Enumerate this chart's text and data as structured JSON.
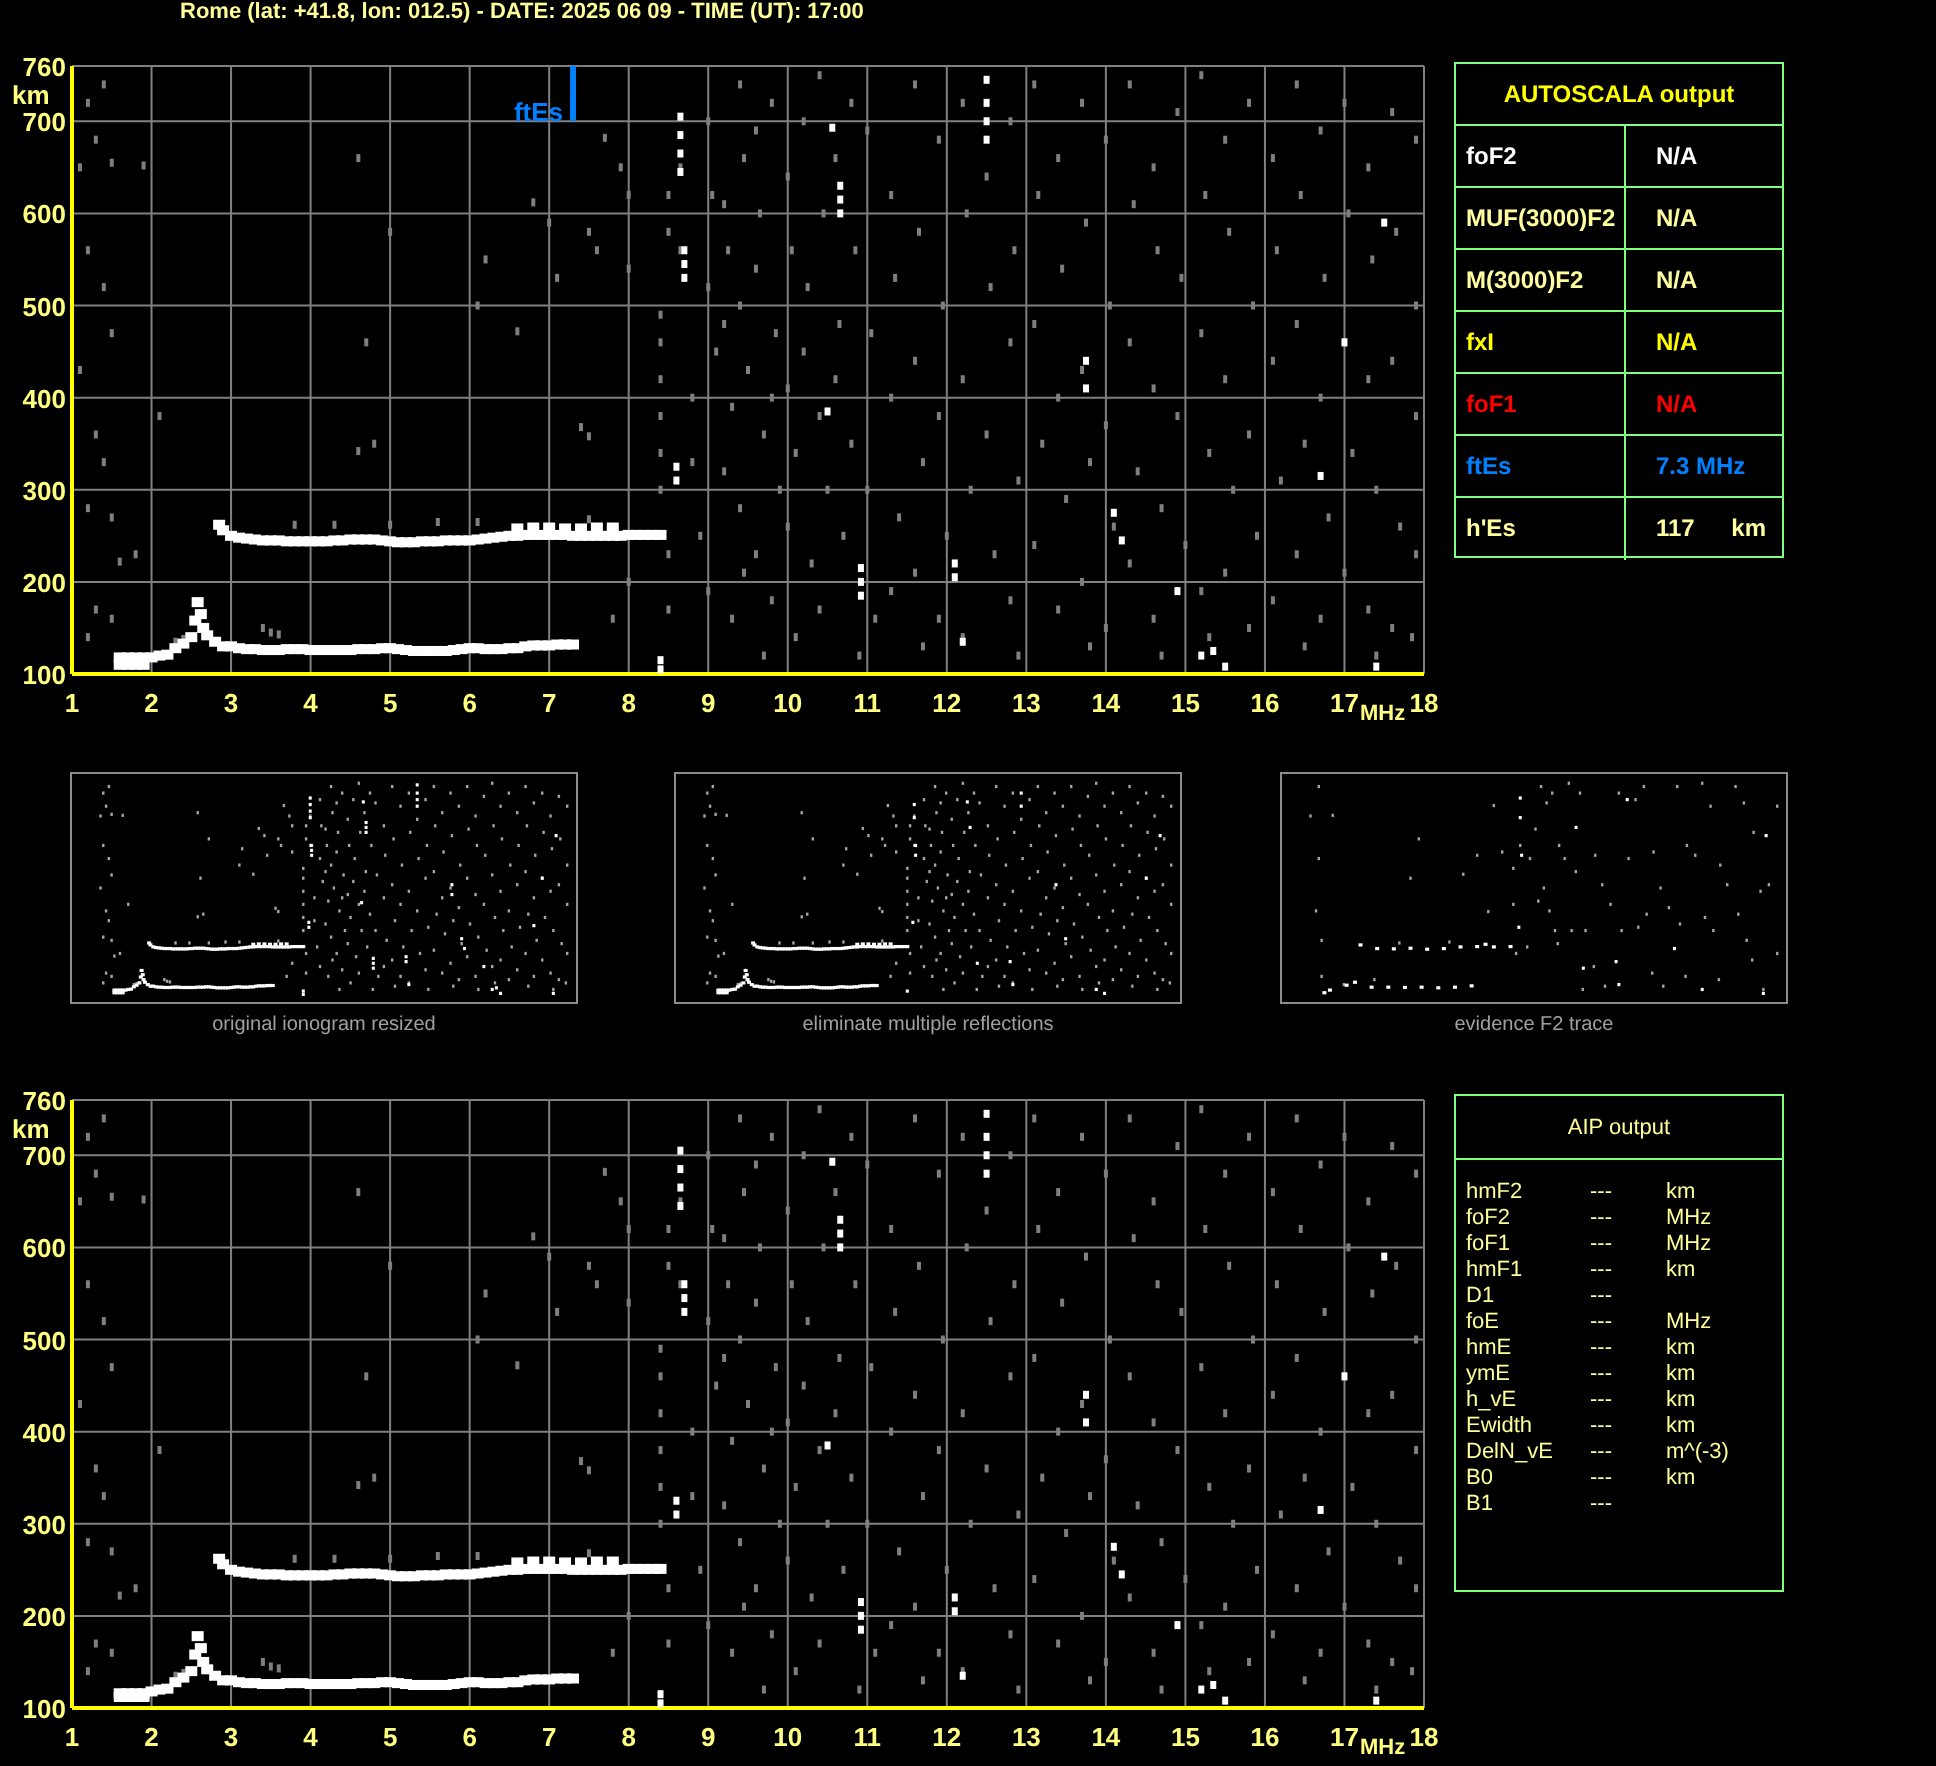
{
  "chart_data": [
    {
      "type": "scatter",
      "title": "Rome (lat: +41.8, lon: 012.5) - DATE: 2025 06 09 - TIME (UT): 17:00",
      "xlabel": "MHz",
      "ylabel": "km",
      "xlim": [
        1,
        18
      ],
      "ylim": [
        100,
        760
      ],
      "xticks": [
        1,
        2,
        3,
        4,
        5,
        6,
        7,
        8,
        9,
        10,
        11,
        12,
        13,
        14,
        15,
        16,
        17,
        18
      ],
      "yticks": [
        100,
        200,
        300,
        400,
        500,
        600,
        700,
        760
      ],
      "grid": true,
      "marker": "square",
      "ref_lines": [
        {
          "axis": "x",
          "value": 7.3,
          "label": "ftEs",
          "color": "#0080ff"
        }
      ],
      "series": [
        {
          "color": "#7f7f7f",
          "x": [
            1.1,
            1.2,
            1.3,
            1.4,
            1.5,
            1.2,
            1.4,
            1.5,
            1.1,
            1.3,
            1.4,
            1.2,
            1.5,
            1.6,
            1.3,
            1.5,
            1.2,
            1.8,
            1.9,
            2.1,
            4.6,
            4.7,
            4.8,
            4.6,
            3.4,
            3.5,
            3.6,
            5.0,
            6.2,
            6.1,
            6.6,
            6.8,
            7.0,
            7.1,
            7.5,
            7.6,
            7.7,
            7.9,
            7.4,
            7.5,
            7.8,
            8.0,
            8.0,
            8.0,
            3.8,
            4.3,
            5.0,
            5.6,
            6.1,
            7.5,
            2.4,
            2.3,
            8.4,
            8.4,
            8.4,
            8.4,
            8.4,
            8.4,
            8.5,
            8.5,
            8.5,
            8.5,
            8.65,
            8.65,
            8.8,
            8.8,
            8.9,
            9,
            9.05,
            9,
            9.1,
            9,
            9.2,
            9.25,
            9.2,
            9.3,
            9.2,
            9.3,
            9.4,
            9.45,
            9.4,
            9.5,
            9.4,
            9.45,
            9.6,
            9.65,
            9.6,
            9.7,
            9.6,
            9.7,
            9.8,
            9.85,
            9.8,
            9.9,
            9.8,
            10,
            10.05,
            10,
            10.1,
            10,
            10.1,
            10.2,
            10.25,
            10.2,
            10.3,
            10.4,
            10.45,
            10.4,
            10.5,
            10.4,
            10.6,
            10.65,
            10.6,
            10.7,
            10.8,
            10.85,
            10.8,
            10.9,
            11,
            11.05,
            11,
            11.1,
            11.3,
            11.35,
            11.3,
            11.4,
            11.3,
            11.6,
            11.65,
            11.6,
            11.7,
            11.6,
            11.7,
            11.9,
            11.95,
            11.9,
            12,
            11.9,
            12.2,
            12.25,
            12.2,
            12.3,
            12.2,
            12.5,
            12.55,
            12.5,
            12.6,
            12.8,
            12.85,
            12.8,
            12.9,
            12.8,
            12.9,
            13.1,
            13.15,
            13.1,
            13.2,
            13.1,
            13.4,
            13.45,
            13.4,
            13.5,
            13.4,
            13.7,
            13.75,
            13.7,
            13.8,
            13.7,
            13.8,
            14,
            14.05,
            14,
            14.1,
            14,
            14.3,
            14.35,
            14.3,
            14.4,
            14.3,
            14.6,
            14.65,
            14.6,
            14.7,
            14.6,
            14.7,
            14.9,
            14.95,
            14.9,
            15,
            15.2,
            15.25,
            15.2,
            15.3,
            15.2,
            15.3,
            15.5,
            15.55,
            15.5,
            15.6,
            15.5,
            15.8,
            15.85,
            15.8,
            15.9,
            15.8,
            16.1,
            16.15,
            16.1,
            16.2,
            16.1,
            16.4,
            16.45,
            16.4,
            16.5,
            16.4,
            16.5,
            16.7,
            16.75,
            16.7,
            16.8,
            16.7,
            17,
            17.05,
            17,
            17.1,
            17,
            17.3,
            17.35,
            17.3,
            17.4,
            17.3,
            17.4,
            17.6,
            17.65,
            17.6,
            17.7,
            17.6,
            17.9,
            17.9,
            17.9,
            17.9,
            17.85
          ],
          "values": [
            650,
            720,
            680,
            740,
            655,
            560,
            520,
            470,
            430,
            360,
            330,
            280,
            270,
            222,
            170,
            160,
            140,
            230,
            652,
            380,
            660,
            460,
            350,
            342,
            150,
            145,
            143,
            580,
            550,
            500,
            472,
            612,
            590,
            530,
            580,
            560,
            682,
            650,
            368,
            358,
            160,
            200,
            540,
            620,
            262,
            262,
            262,
            265,
            265,
            268,
            138,
            135,
            300,
            340,
            380,
            420,
            460,
            490,
            620,
            580,
            230,
            170,
            650,
            560,
            400,
            330,
            250,
            700,
            620,
            520,
            450,
            190,
            610,
            560,
            480,
            390,
            320,
            160,
            740,
            660,
            500,
            430,
            280,
            210,
            690,
            600,
            540,
            360,
            230,
            120,
            720,
            470,
            400,
            300,
            180,
            640,
            560,
            410,
            340,
            260,
            140,
            700,
            520,
            450,
            220,
            750,
            600,
            380,
            300,
            170,
            660,
            480,
            420,
            250,
            720,
            560,
            350,
            120,
            690,
            470,
            300,
            160,
            620,
            530,
            400,
            270,
            190,
            740,
            580,
            440,
            330,
            210,
            130,
            680,
            500,
            380,
            250,
            160,
            720,
            600,
            420,
            300,
            140,
            640,
            520,
            360,
            230,
            700,
            560,
            460,
            310,
            180,
            120,
            740,
            620,
            480,
            350,
            240,
            660,
            540,
            400,
            290,
            170,
            720,
            590,
            430,
            330,
            200,
            130,
            680,
            500,
            370,
            260,
            150,
            740,
            610,
            460,
            320,
            220,
            650,
            560,
            410,
            280,
            160,
            120,
            710,
            530,
            380,
            240,
            750,
            620,
            470,
            340,
            190,
            140,
            680,
            580,
            420,
            300,
            210,
            720,
            500,
            360,
            250,
            150,
            660,
            560,
            440,
            310,
            180,
            740,
            620,
            480,
            350,
            230,
            130,
            690,
            530,
            400,
            270,
            160,
            720,
            600,
            460,
            340,
            210,
            650,
            550,
            420,
            300,
            170,
            120,
            710,
            580,
            440,
            260,
            150,
            680,
            500,
            380,
            230,
            140
          ]
        },
        {
          "color": "#ffffff",
          "x": [
            1.6,
            1.7,
            1.8,
            1.9,
            1.6,
            1.7,
            1.8,
            1.9,
            2,
            2.1,
            2.2,
            2.3,
            2.4,
            2.5,
            2.55,
            2.58,
            2.62,
            2.65,
            2.7,
            2.8,
            2.9,
            3,
            3.1,
            3.2,
            3.3,
            3.4,
            3.5,
            3.6,
            3.7,
            3.8,
            3.9,
            4,
            4.1,
            4.2,
            4.3,
            4.4,
            4.5,
            4.6,
            4.7,
            4.8,
            4.9,
            5,
            5.1,
            5.2,
            5.3,
            5.4,
            5.5,
            5.6,
            5.7,
            5.8,
            5.9,
            6,
            6.1,
            6.2,
            6.3,
            6.4,
            6.5,
            6.6,
            6.7,
            6.8,
            6.9,
            7,
            7.1,
            7.2,
            7.3,
            2.85,
            2.9,
            3,
            3.1,
            3.2,
            3.3,
            3.4,
            3.5,
            3.6,
            3.7,
            3.8,
            3.9,
            4,
            4.1,
            4.2,
            4.3,
            4.4,
            4.5,
            4.6,
            4.7,
            4.8,
            4.9,
            5,
            5.1,
            5.2,
            5.3,
            5.4,
            5.5,
            5.6,
            5.7,
            5.8,
            5.9,
            6,
            6.1,
            6.2,
            6.3,
            6.4,
            6.5,
            6.6,
            6.7,
            6.8,
            6.9,
            7,
            7.1,
            7.2,
            7.3,
            7.4,
            7.5,
            7.6,
            7.7,
            7.8,
            7.9,
            8,
            8.1,
            8.2,
            8.3,
            8.4,
            6.6,
            6.8,
            7,
            7.2,
            7.4,
            7.6,
            7.8
          ],
          "values": [
            110,
            110,
            110,
            110,
            118,
            118,
            118,
            118,
            118,
            120,
            121,
            128,
            133,
            140,
            158,
            178,
            165,
            150,
            142,
            135,
            130,
            130,
            128,
            127,
            127,
            126,
            126,
            126,
            127,
            127,
            127,
            126,
            126,
            126,
            126,
            126,
            126,
            127,
            127,
            127,
            128,
            128,
            127,
            126,
            125,
            125,
            125,
            125,
            125,
            126,
            127,
            128,
            128,
            127,
            127,
            127,
            128,
            128,
            130,
            131,
            131,
            131,
            132,
            132,
            132,
            262,
            256,
            250,
            248,
            247,
            246,
            245,
            245,
            245,
            244,
            244,
            244,
            244,
            244,
            244,
            245,
            245,
            246,
            246,
            246,
            246,
            245,
            244,
            243,
            243,
            243,
            244,
            244,
            244,
            245,
            245,
            245,
            245,
            246,
            247,
            248,
            249,
            250,
            250,
            251,
            251,
            251,
            251,
            251,
            251,
            250,
            250,
            250,
            250,
            250,
            250,
            250,
            251,
            251,
            251,
            251,
            251,
            258,
            259,
            259,
            258,
            258,
            259,
            259
          ]
        },
        {
          "color": "#ffffff",
          "x": [
            8.65,
            8.65,
            8.65,
            8.65,
            8.7,
            8.7,
            8.7,
            8.4,
            8.4,
            8.6,
            8.6,
            10.66,
            10.66,
            10.66,
            10.56,
            10.92,
            10.92,
            10.92,
            12.1,
            12.1,
            12.5,
            12.5,
            12.5,
            12.5,
            12.2,
            13.75,
            13.75,
            14.2,
            14.1,
            14.9,
            15.2,
            15.35,
            15.5,
            17.4,
            17.0,
            16.7,
            17.5,
            10.5
          ],
          "values": [
            645,
            665,
            685,
            705,
            560,
            545,
            530,
            105,
            115,
            310,
            325,
            600,
            615,
            630,
            693,
            185,
            200,
            215,
            205,
            220,
            680,
            700,
            720,
            745,
            135,
            410,
            440,
            245,
            275,
            190,
            120,
            125,
            108,
            108,
            460,
            315,
            590,
            385
          ]
        }
      ]
    },
    {
      "type": "other",
      "title": "AUTOSCALA output",
      "y_categories": [
        "foF2",
        "MUF(3000)F2",
        "M(3000)F2",
        "fxI",
        "foF1",
        "ftEs",
        "h'Es"
      ],
      "cell_labels": [
        [
          "N/A",
          null
        ],
        [
          "N/A",
          null
        ],
        [
          "N/A",
          null
        ],
        [
          "N/A",
          null
        ],
        [
          "N/A",
          null
        ],
        [
          "7.3 MHz",
          null
        ],
        [
          "117",
          "km"
        ]
      ],
      "colors": [
        "#ffffff",
        "#ffffa0",
        "#ffffa0",
        "#ffff00",
        "#ff0000",
        "#0080ff",
        "#ffffa0"
      ]
    },
    {
      "type": "other",
      "title": "original ionogram resized"
    },
    {
      "type": "other",
      "title": "eliminate multiple reflections"
    },
    {
      "type": "other",
      "title": "evidence F2 trace"
    },
    {
      "type": "scatter",
      "xlabel": "MHz",
      "ylabel": "km",
      "xlim": [
        1,
        18
      ],
      "ylim": [
        100,
        760
      ],
      "xticks": [
        1,
        2,
        3,
        4,
        5,
        6,
        7,
        8,
        9,
        10,
        11,
        12,
        13,
        14,
        15,
        16,
        17,
        18
      ],
      "yticks": [
        100,
        200,
        300,
        400,
        500,
        600,
        700,
        760
      ],
      "grid": true,
      "marker": "square",
      "series": [
        {
          "color": "#7f7f7f",
          "x": [
            1.1,
            1.2,
            1.3,
            1.4,
            1.5,
            1.2,
            1.4,
            1.5,
            1.1,
            1.3,
            1.4,
            1.2,
            1.5,
            1.6,
            1.3,
            1.5,
            1.2,
            1.8,
            1.9,
            2.1,
            4.6,
            4.7,
            4.8,
            4.6,
            3.4,
            3.5,
            3.6,
            5.0,
            6.2,
            6.1,
            6.6,
            6.8,
            7.0,
            7.1,
            7.5,
            7.6,
            7.7,
            7.9,
            7.4,
            7.5,
            7.8,
            8.0,
            8.0,
            8.0,
            3.8,
            4.3,
            5.0,
            5.6,
            6.1,
            7.5,
            2.4,
            2.3,
            8.4,
            8.4,
            8.4,
            8.4,
            8.4,
            8.4,
            8.5,
            8.5,
            8.5,
            8.5,
            8.65,
            8.65,
            8.8,
            8.8,
            8.9,
            9,
            9.05,
            9,
            9.1,
            9,
            9.2,
            9.25,
            9.2,
            9.3,
            9.2,
            9.3,
            9.4,
            9.45,
            9.4,
            9.5,
            9.4,
            9.45,
            9.6,
            9.65,
            9.6,
            9.7,
            9.6,
            9.7,
            9.8,
            9.85,
            9.8,
            9.9,
            9.8,
            10,
            10.05,
            10,
            10.1,
            10,
            10.1,
            10.2,
            10.25,
            10.2,
            10.3,
            10.4,
            10.45,
            10.4,
            10.5,
            10.4,
            10.6,
            10.65,
            10.6,
            10.7,
            10.8,
            10.85,
            10.8,
            10.9,
            11,
            11.05,
            11,
            11.1,
            11.3,
            11.35,
            11.3,
            11.4,
            11.3,
            11.6,
            11.65,
            11.6,
            11.7,
            11.6,
            11.7,
            11.9,
            11.95,
            11.9,
            12,
            11.9,
            12.2,
            12.25,
            12.2,
            12.3,
            12.2,
            12.5,
            12.55,
            12.5,
            12.6,
            12.8,
            12.85,
            12.8,
            12.9,
            12.8,
            12.9,
            13.1,
            13.15,
            13.1,
            13.2,
            13.1,
            13.4,
            13.45,
            13.4,
            13.5,
            13.4,
            13.7,
            13.75,
            13.7,
            13.8,
            13.7,
            13.8,
            14,
            14.05,
            14,
            14.1,
            14,
            14.3,
            14.35,
            14.3,
            14.4,
            14.3,
            14.6,
            14.65,
            14.6,
            14.7,
            14.6,
            14.7,
            14.9,
            14.95,
            14.9,
            15,
            15.2,
            15.25,
            15.2,
            15.3,
            15.2,
            15.3,
            15.5,
            15.55,
            15.5,
            15.6,
            15.5,
            15.8,
            15.85,
            15.8,
            15.9,
            15.8,
            16.1,
            16.15,
            16.1,
            16.2,
            16.1,
            16.4,
            16.45,
            16.4,
            16.5,
            16.4,
            16.5,
            16.7,
            16.75,
            16.7,
            16.8,
            16.7,
            17,
            17.05,
            17,
            17.1,
            17,
            17.3,
            17.35,
            17.3,
            17.4,
            17.3,
            17.4,
            17.6,
            17.65,
            17.6,
            17.7,
            17.6,
            17.9,
            17.9,
            17.9,
            17.9,
            17.85
          ],
          "values": [
            650,
            720,
            680,
            740,
            655,
            560,
            520,
            470,
            430,
            360,
            330,
            280,
            270,
            222,
            170,
            160,
            140,
            230,
            652,
            380,
            660,
            460,
            350,
            342,
            150,
            145,
            143,
            580,
            550,
            500,
            472,
            612,
            590,
            530,
            580,
            560,
            682,
            650,
            368,
            358,
            160,
            200,
            540,
            620,
            262,
            262,
            262,
            265,
            265,
            268,
            138,
            135,
            300,
            340,
            380,
            420,
            460,
            490,
            620,
            580,
            230,
            170,
            650,
            560,
            400,
            330,
            250,
            700,
            620,
            520,
            450,
            190,
            610,
            560,
            480,
            390,
            320,
            160,
            740,
            660,
            500,
            430,
            280,
            210,
            690,
            600,
            540,
            360,
            230,
            120,
            720,
            470,
            400,
            300,
            180,
            640,
            560,
            410,
            340,
            260,
            140,
            700,
            520,
            450,
            220,
            750,
            600,
            380,
            300,
            170,
            660,
            480,
            420,
            250,
            720,
            560,
            350,
            120,
            690,
            470,
            300,
            160,
            620,
            530,
            400,
            270,
            190,
            740,
            580,
            440,
            330,
            210,
            130,
            680,
            500,
            380,
            250,
            160,
            720,
            600,
            420,
            300,
            140,
            640,
            520,
            360,
            230,
            700,
            560,
            460,
            310,
            180,
            120,
            740,
            620,
            480,
            350,
            240,
            660,
            540,
            400,
            290,
            170,
            720,
            590,
            430,
            330,
            200,
            130,
            680,
            500,
            370,
            260,
            150,
            740,
            610,
            460,
            320,
            220,
            650,
            560,
            410,
            280,
            160,
            120,
            710,
            530,
            380,
            240,
            750,
            620,
            470,
            340,
            190,
            140,
            680,
            580,
            420,
            300,
            210,
            720,
            500,
            360,
            250,
            150,
            660,
            560,
            440,
            310,
            180,
            740,
            620,
            480,
            350,
            230,
            130,
            690,
            530,
            400,
            270,
            160,
            720,
            600,
            460,
            340,
            210,
            650,
            550,
            420,
            300,
            170,
            120,
            710,
            580,
            440,
            260,
            150,
            680,
            500,
            380,
            230,
            140
          ]
        },
        {
          "color": "#ffffff",
          "x": [
            1.6,
            1.7,
            1.8,
            1.9,
            1.6,
            1.7,
            1.8,
            1.9,
            2,
            2.1,
            2.2,
            2.3,
            2.4,
            2.5,
            2.55,
            2.58,
            2.62,
            2.65,
            2.7,
            2.8,
            2.9,
            3,
            3.1,
            3.2,
            3.3,
            3.4,
            3.5,
            3.6,
            3.7,
            3.8,
            3.9,
            4,
            4.1,
            4.2,
            4.3,
            4.4,
            4.5,
            4.6,
            4.7,
            4.8,
            4.9,
            5,
            5.1,
            5.2,
            5.3,
            5.4,
            5.5,
            5.6,
            5.7,
            5.8,
            5.9,
            6,
            6.1,
            6.2,
            6.3,
            6.4,
            6.5,
            6.6,
            6.7,
            6.8,
            6.9,
            7,
            7.1,
            7.2,
            7.3,
            2.85,
            2.9,
            3,
            3.1,
            3.2,
            3.3,
            3.4,
            3.5,
            3.6,
            3.7,
            3.8,
            3.9,
            4,
            4.1,
            4.2,
            4.3,
            4.4,
            4.5,
            4.6,
            4.7,
            4.8,
            4.9,
            5,
            5.1,
            5.2,
            5.3,
            5.4,
            5.5,
            5.6,
            5.7,
            5.8,
            5.9,
            6,
            6.1,
            6.2,
            6.3,
            6.4,
            6.5,
            6.6,
            6.7,
            6.8,
            6.9,
            7,
            7.1,
            7.2,
            7.3,
            7.4,
            7.5,
            7.6,
            7.7,
            7.8,
            7.9,
            8,
            8.1,
            8.2,
            8.3,
            8.4,
            6.6,
            6.8,
            7,
            7.2,
            7.4,
            7.6,
            7.8
          ],
          "values": [
            112,
            112,
            112,
            112,
            116,
            116,
            116,
            116,
            118,
            120,
            121,
            128,
            133,
            140,
            158,
            178,
            165,
            150,
            142,
            135,
            130,
            130,
            128,
            127,
            127,
            126,
            126,
            126,
            127,
            127,
            127,
            126,
            126,
            126,
            126,
            126,
            126,
            127,
            127,
            127,
            128,
            128,
            127,
            126,
            125,
            125,
            125,
            125,
            125,
            126,
            127,
            128,
            128,
            127,
            127,
            127,
            128,
            128,
            130,
            131,
            131,
            131,
            132,
            132,
            132,
            262,
            256,
            250,
            248,
            247,
            246,
            245,
            245,
            245,
            244,
            244,
            244,
            244,
            244,
            244,
            245,
            245,
            246,
            246,
            246,
            246,
            245,
            244,
            243,
            243,
            243,
            244,
            244,
            244,
            245,
            245,
            245,
            245,
            246,
            247,
            248,
            249,
            250,
            250,
            251,
            251,
            251,
            251,
            251,
            251,
            250,
            250,
            250,
            250,
            250,
            250,
            250,
            251,
            251,
            251,
            251,
            251,
            258,
            259,
            259,
            258,
            258,
            259,
            259
          ]
        },
        {
          "color": "#ffffff",
          "x": [
            8.65,
            8.65,
            8.65,
            8.65,
            8.7,
            8.7,
            8.7,
            8.4,
            8.4,
            8.6,
            8.6,
            10.66,
            10.66,
            10.66,
            10.56,
            10.92,
            10.92,
            10.92,
            12.1,
            12.1,
            12.5,
            12.5,
            12.5,
            12.5,
            12.2,
            13.75,
            13.75,
            14.2,
            14.1,
            14.9,
            15.2,
            15.35,
            15.5,
            17.4,
            17.0,
            16.7,
            17.5,
            10.5
          ],
          "values": [
            645,
            665,
            685,
            705,
            560,
            545,
            530,
            105,
            115,
            310,
            325,
            600,
            615,
            630,
            693,
            185,
            200,
            215,
            205,
            220,
            680,
            700,
            720,
            745,
            135,
            410,
            440,
            245,
            275,
            190,
            120,
            125,
            108,
            108,
            460,
            315,
            590,
            385
          ]
        }
      ]
    },
    {
      "type": "other",
      "title": "AIP output",
      "y_categories": [
        "hmF2",
        "foF2",
        "foF1",
        "hmF1",
        "D1",
        "foE",
        "hmE",
        "ymE",
        "h_vE",
        "Ewidth",
        "DelN_vE",
        "B0",
        "B1"
      ],
      "cell_labels": [
        [
          "---",
          "km"
        ],
        [
          "---",
          "MHz"
        ],
        [
          "---",
          "MHz"
        ],
        [
          "---",
          "km"
        ],
        [
          "---",
          null
        ],
        [
          "---",
          "MHz"
        ],
        [
          "---",
          "km"
        ],
        [
          "---",
          "km"
        ],
        [
          "---",
          "km"
        ],
        [
          "---",
          "km"
        ],
        [
          "---",
          "m^(-3)"
        ],
        [
          "---",
          "km"
        ],
        [
          "---",
          null
        ]
      ]
    }
  ]
}
